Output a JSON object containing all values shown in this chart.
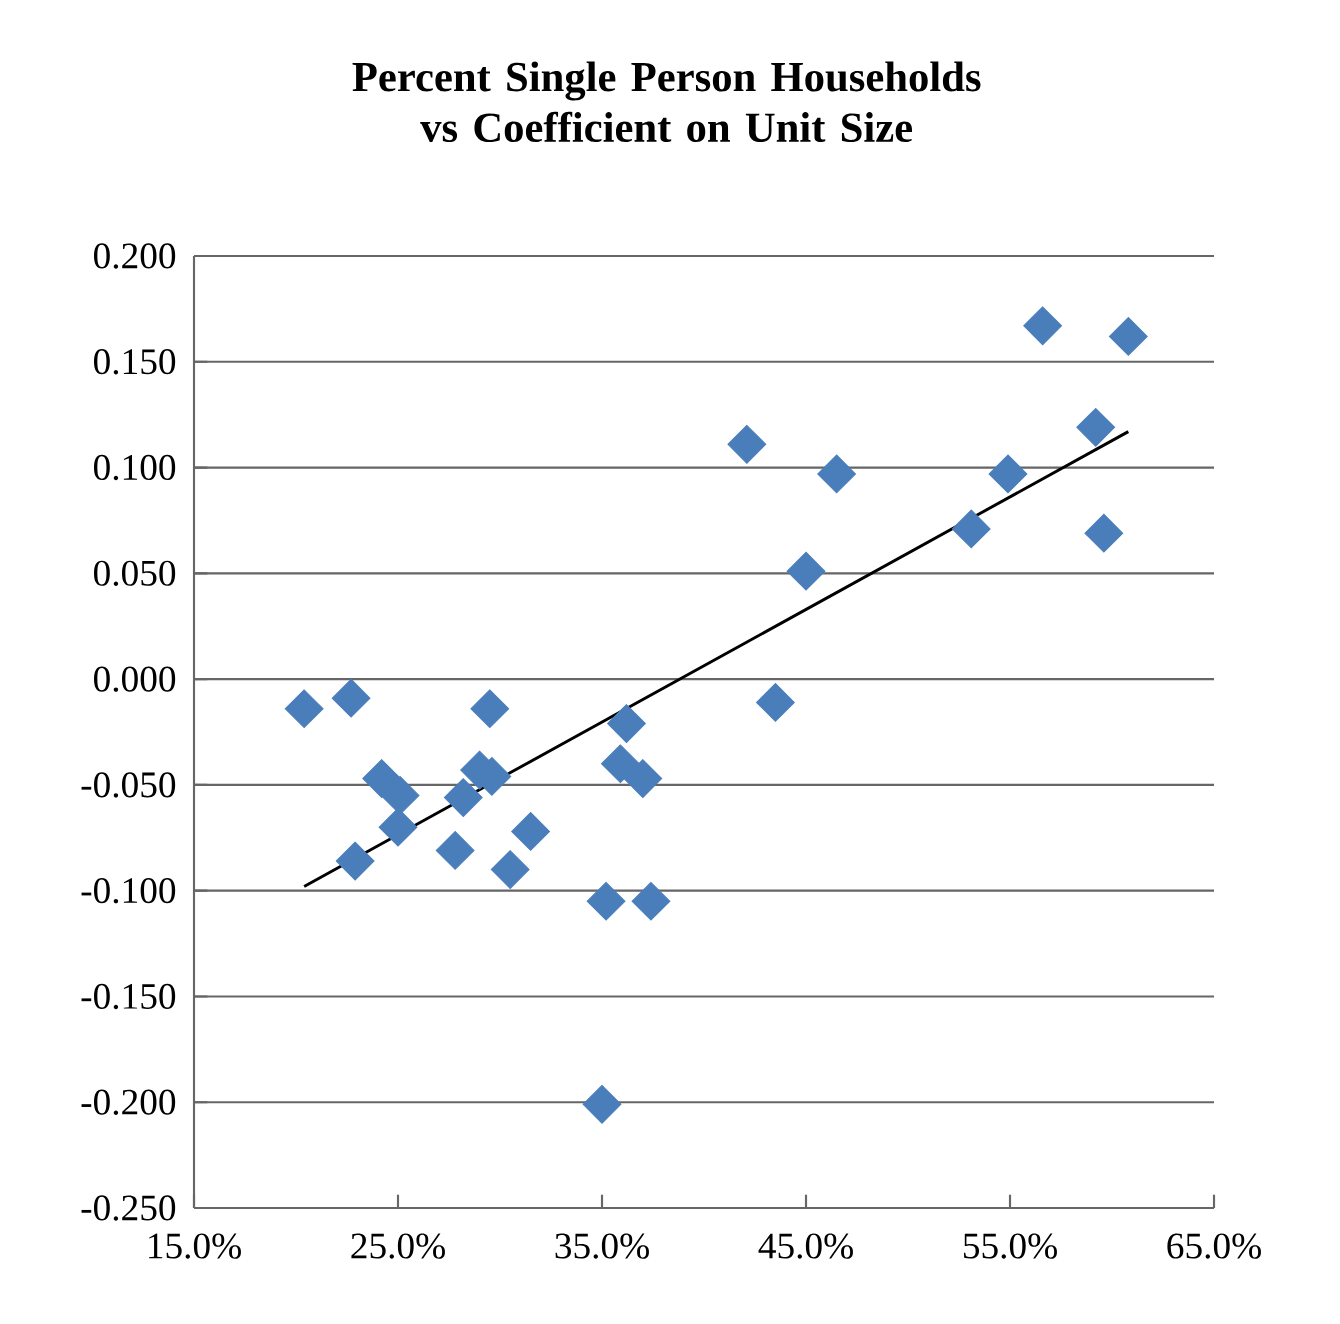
{
  "chart_data": {
    "type": "scatter",
    "title": "Percent Single Person Households vs Coefficient on Unit Size",
    "xlim": [
      15,
      65
    ],
    "xticks": [
      {
        "value": 15,
        "label": "15.0%"
      },
      {
        "value": 25,
        "label": "25.0%"
      },
      {
        "value": 35,
        "label": "35.0%"
      },
      {
        "value": 45,
        "label": "45.0%"
      },
      {
        "value": 55,
        "label": "55.0%"
      },
      {
        "value": 65,
        "label": "65.0%"
      }
    ],
    "ylim": [
      -0.25,
      0.2
    ],
    "yticks": [
      {
        "value": -0.25,
        "label": "-0.250"
      },
      {
        "value": -0.2,
        "label": "-0.200"
      },
      {
        "value": -0.15,
        "label": "-0.150"
      },
      {
        "value": -0.1,
        "label": "-0.100"
      },
      {
        "value": -0.05,
        "label": "-0.050"
      },
      {
        "value": 0,
        "label": "0.000"
      },
      {
        "value": 0.05,
        "label": "0.050"
      },
      {
        "value": 0.1,
        "label": "0.100"
      },
      {
        "value": 0.15,
        "label": "0.150"
      },
      {
        "value": 0.2,
        "label": "0.200"
      }
    ],
    "grid": "y",
    "series": [
      {
        "marker": "diamond",
        "color": "#4a7ebb",
        "x": [
          20.4,
          22.7,
          29.5,
          24.2,
          25.1,
          22.9,
          25.0,
          27.8,
          29.6,
          28.2,
          29.0,
          30.5,
          31.5,
          35.2,
          37.4,
          35.0,
          35.9,
          36.2,
          37.0,
          42.1,
          43.5,
          45.0,
          46.5,
          53.1,
          54.9,
          56.6,
          59.2,
          59.6,
          60.8
        ],
        "values": [
          -0.014,
          -0.009,
          -0.014,
          -0.047,
          -0.055,
          -0.086,
          -0.07,
          -0.081,
          -0.046,
          -0.056,
          -0.043,
          -0.09,
          -0.072,
          -0.105,
          -0.105,
          -0.201,
          -0.04,
          -0.021,
          -0.047,
          0.111,
          -0.011,
          0.051,
          0.097,
          0.071,
          0.097,
          0.167,
          0.119,
          0.069,
          0.162
        ]
      },
      {
        "type": "line",
        "marker": "none",
        "line_style": "solid",
        "color": "#000000",
        "x": [
          20.4,
          60.8
        ],
        "values": [
          -0.098,
          0.117
        ]
      }
    ]
  }
}
